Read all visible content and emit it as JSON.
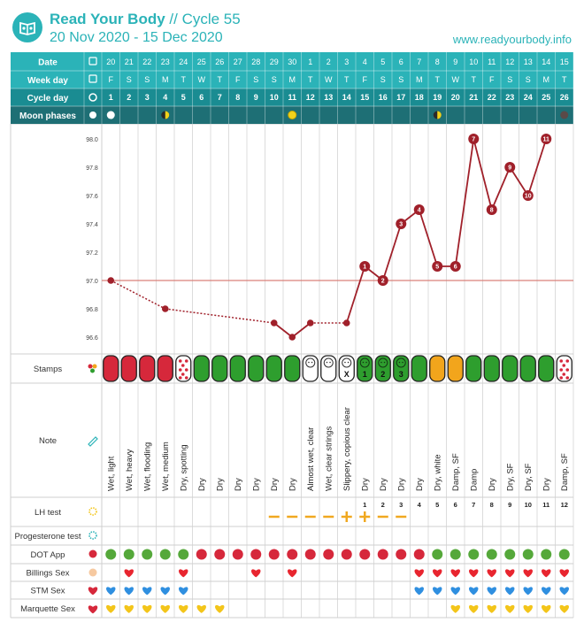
{
  "header": {
    "app_name": "Read Your Body",
    "cycle_label": "// Cycle 55",
    "date_range": "20 Nov 2020 - 15 Dec 2020",
    "website": "www.readyourbody.info"
  },
  "rows": {
    "date_label": "Date",
    "weekday_label": "Week day",
    "cycleday_label": "Cycle day",
    "moon_label": "Moon phases",
    "stamps_label": "Stamps",
    "note_label": "Note",
    "lh_label": "LH test",
    "progesterone_label": "Progesterone test",
    "dot_label": "DOT App",
    "billings_label": "Billings Sex",
    "stm_label": "STM Sex",
    "marquette_label": "Marquette Sex"
  },
  "dates": [
    "20",
    "21",
    "22",
    "23",
    "24",
    "25",
    "26",
    "27",
    "28",
    "29",
    "30",
    "1",
    "2",
    "3",
    "4",
    "5",
    "6",
    "7",
    "8",
    "9",
    "10",
    "11",
    "12",
    "13",
    "14",
    "15"
  ],
  "weekdays": [
    "F",
    "S",
    "S",
    "M",
    "T",
    "W",
    "T",
    "F",
    "S",
    "S",
    "M",
    "T",
    "W",
    "T",
    "F",
    "S",
    "S",
    "M",
    "T",
    "W",
    "T",
    "F",
    "S",
    "S",
    "M",
    "T"
  ],
  "cycle_days": [
    "1",
    "2",
    "3",
    "4",
    "5",
    "6",
    "7",
    "8",
    "9",
    "10",
    "11",
    "12",
    "13",
    "14",
    "15",
    "16",
    "17",
    "18",
    "19",
    "20",
    "21",
    "22",
    "23",
    "24",
    "25",
    "26"
  ],
  "moon_phases": [
    {
      "day": 0,
      "phase": "full"
    },
    {
      "day": 3,
      "phase": "half"
    },
    {
      "day": 10,
      "phase": "new"
    },
    {
      "day": 18,
      "phase": "half"
    },
    {
      "day": 25,
      "phase": "dark"
    }
  ],
  "stamps": [
    "red",
    "red",
    "red",
    "red",
    "red-dots",
    "green",
    "green",
    "green",
    "green",
    "green",
    "green",
    "white-baby",
    "white-baby",
    "white-baby-x",
    "green-baby",
    "green-baby",
    "green-baby",
    "green",
    "yellow",
    "yellow",
    "green",
    "green",
    "green",
    "green",
    "green",
    "red-dots"
  ],
  "stamp_labels": [
    {
      "day": 13,
      "text": "X"
    },
    {
      "day": 14,
      "text": "1"
    },
    {
      "day": 15,
      "text": "2"
    },
    {
      "day": 16,
      "text": "3"
    }
  ],
  "notes": [
    "Wet, light",
    "Wet, heavy",
    "Wet, flooding",
    "Wet, medium",
    "Dry, spotting",
    "Dry",
    "Dry",
    "Dry",
    "Dry",
    "Dry",
    "Dry",
    "Almost wet, clear",
    "Wet, clear strings",
    "Slippery, copious clear",
    "Dry",
    "Dry",
    "Dry",
    "Dry",
    "Dry, white",
    "Damp, SF",
    "Damp",
    "Dry",
    "Dry, SF",
    "Dry, SF",
    "Dry",
    "Damp, SF"
  ],
  "post_ovulation_numbers": [
    {
      "day": 14,
      "text": "1"
    },
    {
      "day": 15,
      "text": "2"
    },
    {
      "day": 16,
      "text": "3"
    },
    {
      "day": 17,
      "text": "4"
    },
    {
      "day": 18,
      "text": "5"
    },
    {
      "day": 19,
      "text": "6"
    },
    {
      "day": 20,
      "text": "7"
    },
    {
      "day": 21,
      "text": "8"
    },
    {
      "day": 22,
      "text": "9"
    },
    {
      "day": 23,
      "text": "10"
    },
    {
      "day": 24,
      "text": "11"
    },
    {
      "day": 25,
      "text": "12"
    }
  ],
  "lh_tests": [
    {
      "day": 9,
      "result": "negative"
    },
    {
      "day": 10,
      "result": "negative"
    },
    {
      "day": 11,
      "result": "negative"
    },
    {
      "day": 12,
      "result": "negative"
    },
    {
      "day": 13,
      "result": "positive"
    },
    {
      "day": 14,
      "result": "positive"
    },
    {
      "day": 15,
      "result": "negative"
    },
    {
      "day": 16,
      "result": "negative"
    }
  ],
  "dot_app": [
    "green",
    "green",
    "green",
    "green",
    "green",
    "red",
    "red",
    "red",
    "red",
    "red",
    "red",
    "red",
    "red",
    "red",
    "red",
    "red",
    "red",
    "red",
    "green",
    "green",
    "green",
    "green",
    "green",
    "green",
    "green",
    "green"
  ],
  "billings_sex": [
    1,
    4,
    8,
    10,
    17,
    18,
    19,
    20,
    21,
    22,
    23,
    24,
    25
  ],
  "stm_sex": [
    0,
    1,
    2,
    3,
    4,
    17,
    18,
    19,
    20,
    21,
    22,
    23,
    24,
    25
  ],
  "marquette_sex": [
    0,
    1,
    2,
    3,
    4,
    5,
    6,
    19,
    20,
    21,
    22,
    23,
    24,
    25
  ],
  "colors": {
    "teal": "#2bb3b8",
    "teal_dark": "#1a8c92",
    "temp_line": "#a0202a",
    "coverline": "#d9807a",
    "stamp_red": "#d6283b",
    "stamp_green": "#2e9e2e",
    "stamp_yellow": "#f2a51c",
    "lh_orange": "#f0a820",
    "heart_red": "#e8252f",
    "heart_blue": "#2f8fe0",
    "heart_yellow": "#f3c51a"
  },
  "chart_data": {
    "type": "line",
    "title": "",
    "xlabel": "",
    "ylabel": "",
    "ylim": [
      96.5,
      98.1
    ],
    "y_ticks": [
      "98.0",
      "97.8",
      "97.6",
      "97.4",
      "97.2",
      "97.0",
      "96.8",
      "96.6"
    ],
    "coverline": 97.0,
    "series": [
      {
        "points": [
          {
            "day": 0,
            "value": 97.0
          },
          {
            "day": 3,
            "value": 96.8
          },
          {
            "day": 9,
            "value": 96.7
          },
          {
            "day": 10,
            "value": 96.6
          },
          {
            "day": 11,
            "value": 96.7
          },
          {
            "day": 13,
            "value": 96.7
          },
          {
            "day": 14,
            "value": 97.1,
            "label": "1"
          },
          {
            "day": 15,
            "value": 97.0,
            "label": "2"
          },
          {
            "day": 16,
            "value": 97.4,
            "label": "3"
          },
          {
            "day": 17,
            "value": 97.5,
            "label": "4"
          },
          {
            "day": 18,
            "value": 97.1,
            "label": "5"
          },
          {
            "day": 19,
            "value": 97.1,
            "label": "6"
          },
          {
            "day": 20,
            "value": 98.0,
            "label": "7"
          },
          {
            "day": 21,
            "value": 97.5,
            "label": "8"
          },
          {
            "day": 22,
            "value": 97.8,
            "label": "9"
          },
          {
            "day": 23,
            "value": 97.6,
            "label": "10"
          },
          {
            "day": 24,
            "value": 98.0,
            "label": "11"
          }
        ],
        "dotted_until_day": 13
      }
    ]
  }
}
